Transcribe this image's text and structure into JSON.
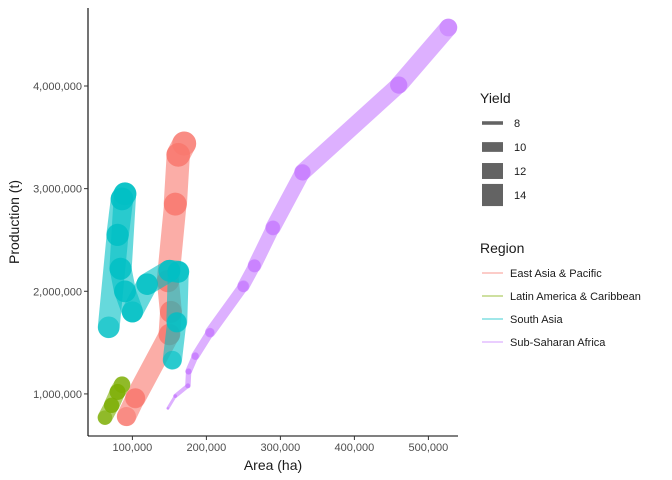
{
  "chart_data": {
    "type": "line",
    "title": "",
    "xlabel": "Area (ha)",
    "ylabel": "Production (t)",
    "xlim": [
      40000,
      540000
    ],
    "ylim": [
      590000,
      4760000
    ],
    "x_ticks": [
      100000,
      200000,
      300000,
      400000,
      500000
    ],
    "x_tick_labels": [
      "100,000",
      "200,000",
      "300,000",
      "400,000",
      "500,000"
    ],
    "y_ticks": [
      1000000,
      2000000,
      3000000,
      4000000
    ],
    "y_tick_labels": [
      "1,000,000",
      "2,000,000",
      "3,000,000",
      "4,000,000"
    ],
    "grid": false,
    "legend_position": "right",
    "size_legend": {
      "title": "Yield",
      "values": [
        8,
        10,
        12,
        14
      ],
      "labels": [
        "8",
        "10",
        "12",
        "14"
      ]
    },
    "color_legend": {
      "title": "Region",
      "entries": [
        "East Asia & Pacific",
        "Latin America & Caribbean",
        "South Asia",
        "Sub-Saharan Africa"
      ]
    },
    "series": [
      {
        "name": "East Asia & Pacific",
        "color": "#F8766D",
        "points": [
          {
            "x": 92000,
            "y": 780000,
            "yield": 13.0
          },
          {
            "x": 104000,
            "y": 960000,
            "yield": 13.2
          },
          {
            "x": 150000,
            "y": 1580000,
            "yield": 13.8
          },
          {
            "x": 152000,
            "y": 1800000,
            "yield": 13.9
          },
          {
            "x": 148000,
            "y": 2100000,
            "yield": 14.0
          },
          {
            "x": 158000,
            "y": 2850000,
            "yield": 14.2
          },
          {
            "x": 162000,
            "y": 3330000,
            "yield": 14.5
          },
          {
            "x": 170000,
            "y": 3440000,
            "yield": 14.6
          }
        ]
      },
      {
        "name": "Latin America & Caribbean",
        "color": "#7CAE00",
        "points": [
          {
            "x": 63000,
            "y": 770000,
            "yield": 11.5
          },
          {
            "x": 72000,
            "y": 890000,
            "yield": 11.8
          },
          {
            "x": 80000,
            "y": 1020000,
            "yield": 12.0
          },
          {
            "x": 86000,
            "y": 1090000,
            "yield": 12.2
          }
        ]
      },
      {
        "name": "South Asia",
        "color": "#00BFC4",
        "points": [
          {
            "x": 68000,
            "y": 1650000,
            "yield": 13.8
          },
          {
            "x": 80000,
            "y": 2550000,
            "yield": 14.0
          },
          {
            "x": 86000,
            "y": 2900000,
            "yield": 14.2
          },
          {
            "x": 90000,
            "y": 2950000,
            "yield": 14.2
          },
          {
            "x": 84000,
            "y": 2220000,
            "yield": 13.9
          },
          {
            "x": 90000,
            "y": 2000000,
            "yield": 13.9
          },
          {
            "x": 100000,
            "y": 1800000,
            "yield": 13.6
          },
          {
            "x": 120000,
            "y": 2070000,
            "yield": 13.8
          },
          {
            "x": 150000,
            "y": 2200000,
            "yield": 13.9
          },
          {
            "x": 162000,
            "y": 2190000,
            "yield": 13.9
          },
          {
            "x": 160000,
            "y": 1700000,
            "yield": 13.3
          },
          {
            "x": 154000,
            "y": 1330000,
            "yield": 12.8
          }
        ]
      },
      {
        "name": "Sub-Saharan Africa",
        "color": "#C77CFF",
        "points": [
          {
            "x": 148000,
            "y": 860000,
            "yield": 7.6
          },
          {
            "x": 158000,
            "y": 980000,
            "yield": 8.0
          },
          {
            "x": 175000,
            "y": 1080000,
            "yield": 8.4
          },
          {
            "x": 176000,
            "y": 1220000,
            "yield": 8.8
          },
          {
            "x": 185000,
            "y": 1370000,
            "yield": 9.2
          },
          {
            "x": 205000,
            "y": 1600000,
            "yield": 9.8
          },
          {
            "x": 250000,
            "y": 2050000,
            "yield": 10.6
          },
          {
            "x": 265000,
            "y": 2250000,
            "yield": 11.0
          },
          {
            "x": 290000,
            "y": 2620000,
            "yield": 11.5
          },
          {
            "x": 330000,
            "y": 3160000,
            "yield": 12.1
          },
          {
            "x": 460000,
            "y": 4010000,
            "yield": 12.4
          },
          {
            "x": 527000,
            "y": 4570000,
            "yield": 12.6
          }
        ]
      }
    ]
  }
}
